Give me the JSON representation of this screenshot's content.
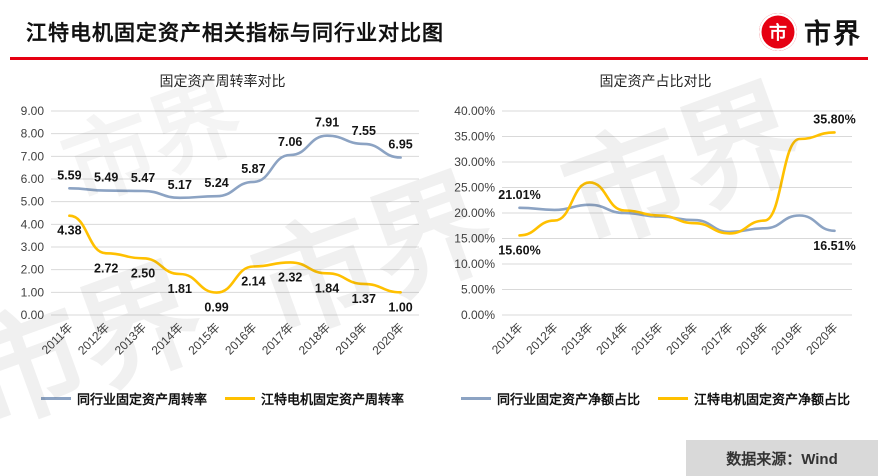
{
  "header": {
    "title": "江特电机固定资产相关指标与同行业对比图",
    "logo_text": "市界",
    "logo_icon_char": "市",
    "accent_color": "#e60012"
  },
  "watermark": {
    "text": "市界"
  },
  "chart_data": [
    {
      "type": "line",
      "title": "固定资产周转率对比",
      "categories": [
        "2011年",
        "2012年",
        "2013年",
        "2014年",
        "2015年",
        "2016年",
        "2017年",
        "2018年",
        "2019年",
        "2020年"
      ],
      "ylim": [
        0,
        9
      ],
      "ytick": 1,
      "ytick_format": "fixed2",
      "grid": true,
      "legend_position": "bottom",
      "point_labels": "all",
      "series": [
        {
          "name": "同行业固定资产周转率",
          "color": "#8ca3c3",
          "label_side": "above",
          "values": [
            5.59,
            5.49,
            5.47,
            5.17,
            5.24,
            5.87,
            7.06,
            7.91,
            7.55,
            6.95
          ]
        },
        {
          "name": "江特电机固定资产周转率",
          "color": "#ffc000",
          "label_side": "below",
          "values": [
            4.38,
            2.72,
            2.5,
            1.81,
            0.99,
            2.14,
            2.32,
            1.84,
            1.37,
            1.0
          ]
        }
      ]
    },
    {
      "type": "line",
      "title": "固定资产占比对比",
      "categories": [
        "2011年",
        "2012年",
        "2013年",
        "2014年",
        "2015年",
        "2016年",
        "2017年",
        "2018年",
        "2019年",
        "2020年"
      ],
      "ylim": [
        0,
        40
      ],
      "ytick": 5,
      "ytick_format": "percent2",
      "grid": true,
      "legend_position": "bottom",
      "point_labels": "ends",
      "series": [
        {
          "name": "同行业固定资产净额占比",
          "color": "#8ca3c3",
          "first_label_side": "above",
          "last_label_side": "below",
          "values": [
            21.01,
            20.6,
            21.6,
            20.0,
            19.3,
            18.6,
            16.3,
            17.0,
            19.5,
            16.51
          ]
        },
        {
          "name": "江特电机固定资产净额占比",
          "color": "#ffc000",
          "first_label_side": "below",
          "last_label_side": "above",
          "values": [
            15.6,
            18.5,
            26.0,
            20.5,
            19.5,
            18.0,
            16.0,
            18.5,
            34.5,
            35.8
          ]
        }
      ]
    }
  ],
  "footer": {
    "source": "数据来源：Wind"
  }
}
